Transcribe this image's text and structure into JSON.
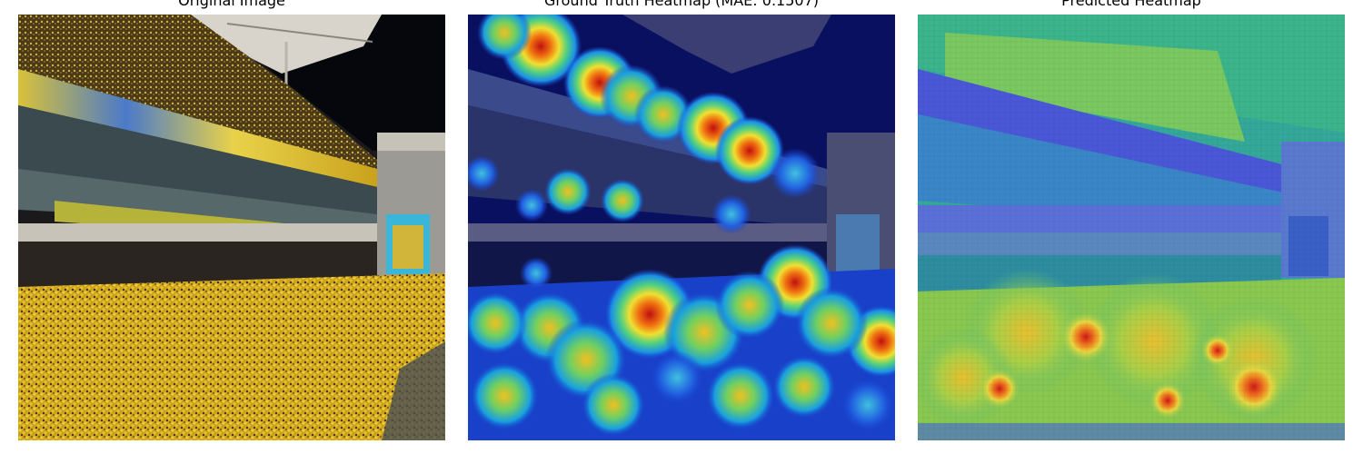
{
  "figure": {
    "panels": [
      {
        "title": "Original Image",
        "image_kind": "stadium-crowd-photo"
      },
      {
        "title": "Ground Truth Heatmap (MAE: 0.1507)",
        "image_kind": "density-heatmap-overlay"
      },
      {
        "title": "Predicted Heatmap",
        "image_kind": "density-heatmap-overlay"
      }
    ]
  }
}
